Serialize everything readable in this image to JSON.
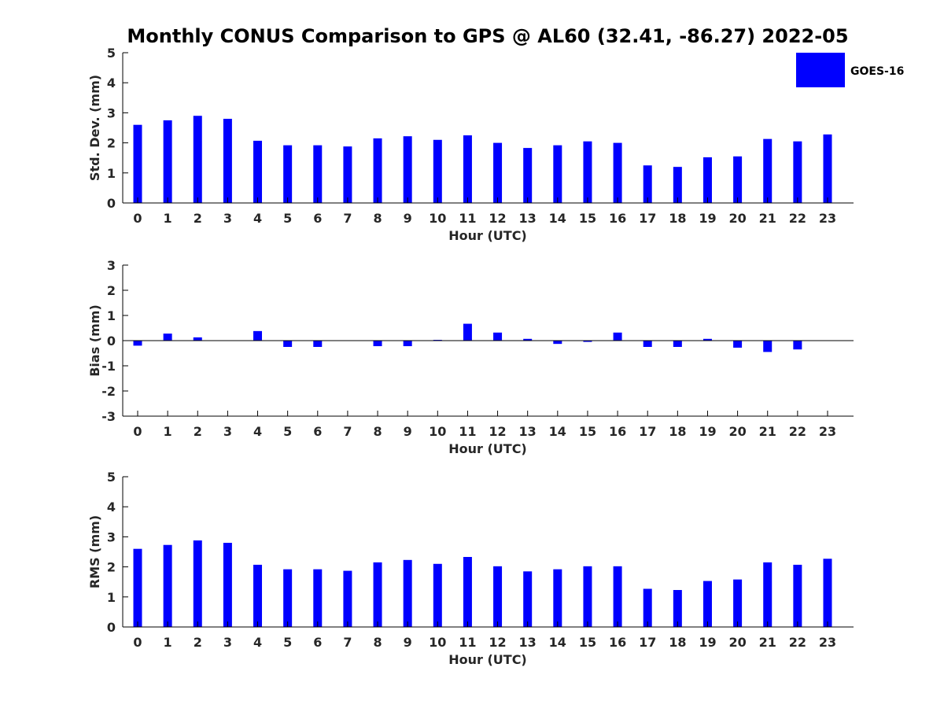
{
  "chart_data": {
    "type": "bar",
    "title": "Monthly CONUS Comparison to GPS @ AL60 (32.41, -86.27) 2022-05",
    "legend": {
      "position": "top-right",
      "entries": [
        {
          "name": "GOES-16",
          "color": "#0000ff"
        }
      ]
    },
    "bar_color": "#0000ff",
    "grid": false,
    "categories": [
      "0",
      "1",
      "2",
      "3",
      "4",
      "5",
      "6",
      "7",
      "8",
      "9",
      "10",
      "11",
      "12",
      "13",
      "14",
      "15",
      "16",
      "17",
      "18",
      "19",
      "20",
      "21",
      "22",
      "23"
    ],
    "panels": [
      {
        "ylabel": "Std. Dev. (mm)",
        "xlabel": "Hour (UTC)",
        "ylim": [
          0,
          5
        ],
        "yticks": [
          "0",
          "1",
          "2",
          "3",
          "4",
          "5"
        ],
        "series": [
          {
            "name": "GOES-16",
            "values": [
              2.6,
              2.75,
              2.9,
              2.8,
              2.07,
              1.92,
              1.92,
              1.88,
              2.15,
              2.22,
              2.1,
              2.25,
              2.0,
              1.83,
              1.92,
              2.05,
              2.0,
              1.25,
              1.2,
              1.52,
              1.55,
              2.13,
              2.05,
              2.28
            ]
          }
        ]
      },
      {
        "ylabel": "Bias (mm)",
        "xlabel": "Hour (UTC)",
        "ylim": [
          -3,
          3
        ],
        "yticks": [
          "-3",
          "-2",
          "-1",
          "0",
          "1",
          "2",
          "3"
        ],
        "series": [
          {
            "name": "GOES-16",
            "values": [
              -0.2,
              0.28,
              0.13,
              0,
              0.38,
              -0.25,
              -0.25,
              0,
              -0.22,
              -0.22,
              0.03,
              0.67,
              0.32,
              0.07,
              -0.13,
              -0.05,
              0.32,
              -0.25,
              -0.25,
              0.07,
              -0.28,
              -0.45,
              -0.35,
              0
            ]
          }
        ]
      },
      {
        "ylabel": "RMS (mm)",
        "xlabel": "Hour (UTC)",
        "ylim": [
          0,
          5
        ],
        "yticks": [
          "0",
          "1",
          "2",
          "3",
          "4",
          "5"
        ],
        "series": [
          {
            "name": "GOES-16",
            "values": [
              2.6,
              2.73,
              2.88,
              2.8,
              2.07,
              1.92,
              1.92,
              1.87,
              2.15,
              2.23,
              2.1,
              2.33,
              2.02,
              1.85,
              1.92,
              2.02,
              2.02,
              1.27,
              1.23,
              1.53,
              1.58,
              2.15,
              2.07,
              2.27
            ]
          }
        ]
      }
    ]
  }
}
